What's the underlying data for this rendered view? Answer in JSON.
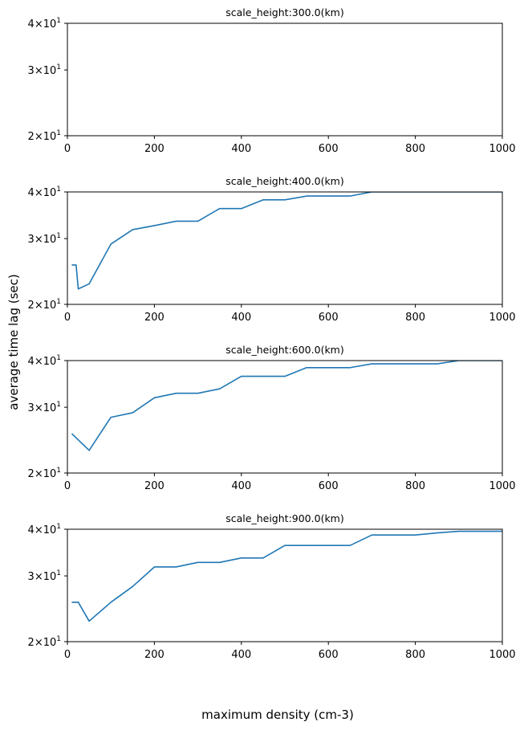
{
  "chart_data": {
    "type": "line",
    "xlabel": "maximum density (cm-3)",
    "ylabel": "average time lag (sec)",
    "line_color": "#1f77b4",
    "y_scale": "log",
    "xlim": [
      0,
      1000
    ],
    "ylim": [
      20,
      40
    ],
    "xticks": [
      "0",
      "200",
      "400",
      "600",
      "800",
      "1000"
    ],
    "yticks": [
      {
        "mantissa": "2",
        "base": "10",
        "exp": "1",
        "value": 20
      },
      {
        "mantissa": "3",
        "base": "10",
        "exp": "1",
        "value": 30
      },
      {
        "mantissa": "4",
        "base": "10",
        "exp": "1",
        "value": 40
      }
    ],
    "panels": [
      {
        "title": "scale_height:300.0(km)",
        "x": [],
        "y": []
      },
      {
        "title": "scale_height:400.0(km)",
        "x": [
          10,
          20,
          25,
          50,
          100,
          150,
          200,
          250,
          300,
          350,
          400,
          450,
          500,
          550,
          600,
          650,
          700,
          750,
          800,
          850,
          900,
          950,
          1000
        ],
        "y": [
          25.5,
          25.5,
          22.0,
          22.7,
          29.0,
          31.7,
          32.5,
          33.4,
          33.4,
          36.1,
          36.1,
          38.1,
          38.1,
          39.0,
          39.0,
          39.0,
          40.0,
          40.0,
          40.0,
          40.0,
          40.0,
          40.0,
          40.0
        ]
      },
      {
        "title": "scale_height:600.0(km)",
        "x": [
          10,
          50,
          100,
          150,
          200,
          250,
          300,
          350,
          400,
          450,
          500,
          550,
          600,
          650,
          700,
          750,
          800,
          850,
          900,
          950,
          1000
        ],
        "y": [
          25.5,
          23.0,
          28.2,
          29.0,
          31.8,
          32.7,
          32.7,
          33.6,
          36.3,
          36.3,
          36.3,
          38.3,
          38.3,
          38.3,
          39.2,
          39.2,
          39.2,
          39.2,
          40.0,
          40.0,
          40.0
        ]
      },
      {
        "title": "scale_height:900.0(km)",
        "x": [
          10,
          25,
          50,
          100,
          150,
          200,
          250,
          300,
          350,
          400,
          450,
          500,
          550,
          600,
          650,
          700,
          750,
          800,
          850,
          900,
          950,
          1000
        ],
        "y": [
          25.5,
          25.5,
          22.7,
          25.5,
          28.1,
          31.7,
          31.7,
          32.6,
          32.6,
          33.5,
          33.5,
          36.2,
          36.2,
          36.2,
          36.2,
          38.6,
          38.6,
          38.6,
          39.1,
          39.5,
          39.5,
          39.5
        ]
      }
    ]
  }
}
